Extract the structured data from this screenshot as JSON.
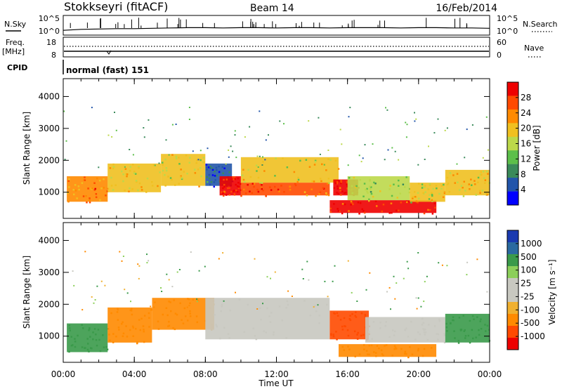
{
  "header": {
    "station": "Stokkseyri (fitACF)",
    "beam": "Beam 14",
    "date": "16/Feb/2014"
  },
  "nsky_panel": {
    "left_label": "N.Sky",
    "left_ticks": [
      "10^5",
      "10^0"
    ],
    "right_ticks": [
      "10^5",
      "10^0"
    ],
    "right_label": "N.Search"
  },
  "freq_panel": {
    "left_label_1": "Freq.",
    "left_label_2": "[MHz]",
    "left_ticks": [
      "18",
      "8"
    ],
    "right_ticks": [
      "60",
      "0"
    ],
    "right_label": "Nave",
    "cpid_label": "CPID",
    "cpid_text": "normal (fast) 151"
  },
  "colors": {
    "power_scale": [
      "#0000ff",
      "#2255aa",
      "#3a8a5a",
      "#5cbf4a",
      "#bcd84a",
      "#f0c020",
      "#ff8a00",
      "#ff4a00",
      "#ee0000"
    ],
    "velocity_scale": [
      "#ee0000",
      "#ff4a00",
      "#ff8a00",
      "#f0b030",
      "#c8c8c0",
      "#c8c8c0",
      "#8ccf5a",
      "#3a9a4a",
      "#2a6aa0",
      "#1a3ab0"
    ]
  },
  "chart_data": [
    {
      "type": "line",
      "title": "N.Sky / N.Search",
      "x": [
        "00:00",
        "01:00",
        "02:00",
        "03:00",
        "04:00",
        "05:00",
        "06:00",
        "07:00",
        "08:00",
        "09:00",
        "10:00",
        "11:00",
        "12:00",
        "13:00",
        "14:00",
        "15:00",
        "16:00",
        "17:00",
        "18:00",
        "19:00",
        "20:00",
        "21:00",
        "22:00",
        "23:00",
        "24:00"
      ],
      "series": [
        {
          "name": "N.Sky",
          "values": [
            1.0,
            1.3,
            1.4,
            1.5,
            1.5,
            1.6,
            1.7,
            1.8,
            1.8,
            1.7,
            1.8,
            1.8,
            1.7,
            1.8,
            1.8,
            1.7,
            1.8,
            1.8,
            1.8,
            1.7,
            1.8,
            1.8,
            1.7,
            1.7,
            1.6
          ]
        }
      ],
      "ylim": [
        0,
        5
      ]
    },
    {
      "type": "line",
      "title": "Freq. / Nave",
      "x": [
        "00:00",
        "04:00",
        "08:00",
        "12:00",
        "16:00",
        "20:00",
        "24:00"
      ],
      "series": [
        {
          "name": "Freq.",
          "values": [
            9.5,
            9.5,
            9.5,
            9.5,
            9.5,
            9.5,
            9.5
          ]
        },
        {
          "name": "Nave",
          "values": [
            27,
            27,
            27,
            27,
            27,
            27,
            27
          ]
        }
      ]
    },
    {
      "type": "heatmap",
      "ylabel": "Slant Range [km]",
      "xlabel": "Time UT",
      "colorbar_label": "Power [dB]",
      "colorbar_ticks": [
        "28",
        "24",
        "20",
        "16",
        "12",
        "8",
        "4"
      ],
      "yticks": [
        "4000",
        "3000",
        "2000",
        "1000"
      ],
      "xticks": [
        "00:00",
        "04:00",
        "08:00",
        "12:00",
        "16:00",
        "20:00",
        "00:00"
      ],
      "xlim_hours": [
        0,
        24
      ],
      "ylim": [
        180,
        4560
      ],
      "regions": [
        {
          "t0": 0.2,
          "t1": 2.5,
          "r0": 700,
          "r1": 1500,
          "value": 22
        },
        {
          "t0": 2.5,
          "t1": 5.5,
          "r0": 1000,
          "r1": 1900,
          "value": 18
        },
        {
          "t0": 5.5,
          "t1": 8.0,
          "r0": 1200,
          "r1": 2200,
          "value": 17
        },
        {
          "t0": 8.0,
          "t1": 9.5,
          "r0": 1200,
          "r1": 1900,
          "value": 6
        },
        {
          "t0": 8.8,
          "t1": 10.0,
          "r0": 900,
          "r1": 1500,
          "value": 28
        },
        {
          "t0": 10.0,
          "t1": 15.0,
          "r0": 900,
          "r1": 1300,
          "value": 24
        },
        {
          "t0": 10.0,
          "t1": 15.5,
          "r0": 1300,
          "r1": 2100,
          "value": 17
        },
        {
          "t0": 15.2,
          "t1": 16.6,
          "r0": 900,
          "r1": 1400,
          "value": 28
        },
        {
          "t0": 15.0,
          "t1": 21.0,
          "r0": 350,
          "r1": 750,
          "value": 27
        },
        {
          "t0": 16.0,
          "t1": 19.5,
          "r0": 750,
          "r1": 1500,
          "value": 14
        },
        {
          "t0": 19.5,
          "t1": 21.5,
          "r0": 700,
          "r1": 1300,
          "value": 17
        },
        {
          "t0": 21.5,
          "t1": 24.0,
          "r0": 900,
          "r1": 1700,
          "value": 18
        }
      ]
    },
    {
      "type": "heatmap",
      "ylabel": "Slant Range [km]",
      "xlabel": "Time UT",
      "colorbar_label": "Velocity [m s⁻¹]",
      "colorbar_ticks": [
        "1000",
        "500",
        "100",
        "25",
        "-25",
        "-100",
        "-500",
        "-1000"
      ],
      "yticks": [
        "4000",
        "3000",
        "2000",
        "1000"
      ],
      "xticks": [
        "00:00",
        "04:00",
        "08:00",
        "12:00",
        "16:00",
        "20:00",
        "00:00"
      ],
      "xlim_hours": [
        0,
        24
      ],
      "ylim": [
        180,
        4560
      ],
      "regions": [
        {
          "t0": 0.2,
          "t1": 2.5,
          "r0": 500,
          "r1": 1400,
          "value": 150
        },
        {
          "t0": 2.5,
          "t1": 5.0,
          "r0": 800,
          "r1": 1900,
          "value": -200
        },
        {
          "t0": 5.0,
          "t1": 8.5,
          "r0": 1200,
          "r1": 2200,
          "value": -150
        },
        {
          "t0": 8.0,
          "t1": 15.0,
          "r0": 900,
          "r1": 2200,
          "value": 0
        },
        {
          "t0": 15.0,
          "t1": 17.2,
          "r0": 900,
          "r1": 1800,
          "value": -800
        },
        {
          "t0": 15.5,
          "t1": 21.0,
          "r0": 350,
          "r1": 750,
          "value": -400
        },
        {
          "t0": 17.0,
          "t1": 21.5,
          "r0": 800,
          "r1": 1600,
          "value": 0
        },
        {
          "t0": 21.5,
          "t1": 24.0,
          "r0": 800,
          "r1": 1700,
          "value": 200
        }
      ]
    }
  ]
}
